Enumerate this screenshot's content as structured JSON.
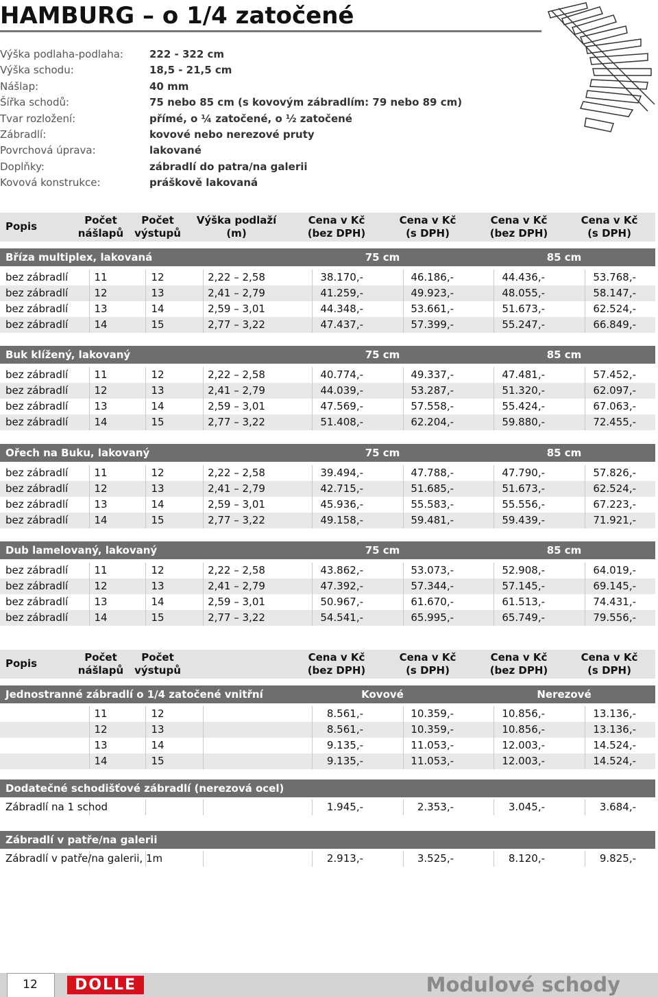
{
  "title": "HAMBURG – o 1/4 zatočené",
  "specs": [
    [
      "Výška podlaha-podlaha:",
      "222 - 322 cm"
    ],
    [
      "Výška schodu:",
      "18,5 - 21,5 cm"
    ],
    [
      "Nášlap:",
      "40 mm"
    ],
    [
      "Šířka schodů:",
      "75 nebo 85 cm (s kovovým zábradlím: 79 nebo 89 cm)"
    ],
    [
      "Tvar rozložení:",
      "přímé, o ¼ zatočené, o ½ zatočené"
    ],
    [
      "Zábradlí:",
      "kovové nebo nerezové pruty"
    ],
    [
      "Povrchová úprava:",
      "lakované"
    ],
    [
      "Doplňky:",
      "zábradlí do patra/na galerii"
    ],
    [
      "Kovová konstrukce:",
      "práškově lakovaná"
    ]
  ],
  "table1": {
    "header": [
      [
        "Popis"
      ],
      [
        "Počet",
        "nášlapů"
      ],
      [
        "Počet",
        "výstupů"
      ],
      [
        "Výška podlaží",
        "(m)"
      ],
      [
        "Cena v Kč",
        "(bez DPH)"
      ],
      [
        "Cena v Kč",
        "(s DPH)"
      ],
      [
        "Cena v Kč",
        "(bez DPH)"
      ],
      [
        "Cena v Kč",
        "(s DPH)"
      ]
    ],
    "sections": [
      {
        "name": "Bříza multiplex, lakovaná",
        "left": "75 cm",
        "right": "85 cm",
        "rows": [
          [
            "bez zábradlí",
            "11",
            "12",
            "2,22 – 2,58",
            "38.170,-",
            "46.186,-",
            "44.436,-",
            "53.768,-"
          ],
          [
            "bez zábradlí",
            "12",
            "13",
            "2,41 – 2,79",
            "41.259,-",
            "49.923,-",
            "48.055,-",
            "58.147,-"
          ],
          [
            "bez zábradlí",
            "13",
            "14",
            "2,59 – 3,01",
            "44.348,-",
            "53.661,-",
            "51.673,-",
            "62.524,-"
          ],
          [
            "bez zábradlí",
            "14",
            "15",
            "2,77 – 3,22",
            "47.437,-",
            "57.399,-",
            "55.247,-",
            "66.849,-"
          ]
        ]
      },
      {
        "name": "Buk klížený, lakovaný",
        "left": "75 cm",
        "right": "85 cm",
        "rows": [
          [
            "bez zábradlí",
            "11",
            "12",
            "2,22 – 2,58",
            "40.774,-",
            "49.337,-",
            "47.481,-",
            "57.452,-"
          ],
          [
            "bez zábradlí",
            "12",
            "13",
            "2,41 – 2,79",
            "44.039,-",
            "53.287,-",
            "51.320,-",
            "62.097,-"
          ],
          [
            "bez zábradlí",
            "13",
            "14",
            "2,59 – 3,01",
            "47.569,-",
            "57.558,-",
            "55.424,-",
            "67.063,-"
          ],
          [
            "bez zábradlí",
            "14",
            "15",
            "2,77 – 3,22",
            "51.408,-",
            "62.204,-",
            "59.880,-",
            "72.455,-"
          ]
        ]
      },
      {
        "name": "Ořech na Buku, lakovaný",
        "left": "75 cm",
        "right": "85 cm",
        "rows": [
          [
            "bez zábradlí",
            "11",
            "12",
            "2,22 – 2,58",
            "39.494,-",
            "47.788,-",
            "47.790,-",
            "57.826,-"
          ],
          [
            "bez zábradlí",
            "12",
            "13",
            "2,41 – 2,79",
            "42.715,-",
            "51.685,-",
            "51.673,-",
            "62.524,-"
          ],
          [
            "bez zábradlí",
            "13",
            "14",
            "2,59 – 3,01",
            "45.936,-",
            "55.583,-",
            "55.556,-",
            "67.223,-"
          ],
          [
            "bez zábradlí",
            "14",
            "15",
            "2,77 – 3,22",
            "49.158,-",
            "59.481,-",
            "59.439,-",
            "71.921,-"
          ]
        ]
      },
      {
        "name": "Dub lamelovaný, lakovaný",
        "left": "75 cm",
        "right": "85 cm",
        "rows": [
          [
            "bez zábradlí",
            "11",
            "12",
            "2,22 – 2,58",
            "43.862,-",
            "53.073,-",
            "52.908,-",
            "64.019,-"
          ],
          [
            "bez zábradlí",
            "12",
            "13",
            "2,41 – 2,79",
            "47.392,-",
            "57.344,-",
            "57.145,-",
            "69.145,-"
          ],
          [
            "bez zábradlí",
            "13",
            "14",
            "2,59 – 3,01",
            "50.967,-",
            "61.670,-",
            "61.513,-",
            "74.431,-"
          ],
          [
            "bez zábradlí",
            "14",
            "15",
            "2,77 – 3,22",
            "54.541,-",
            "65.995,-",
            "65.749,-",
            "79.556,-"
          ]
        ]
      }
    ]
  },
  "table2": {
    "header": [
      [
        "Popis"
      ],
      [
        "Počet",
        "nášlapů"
      ],
      [
        "Počet",
        "výstupů"
      ],
      [
        "Cena v Kč",
        "(bez DPH)"
      ],
      [
        "Cena v Kč",
        "(s DPH)"
      ],
      [
        "Cena v Kč",
        "(bez DPH)"
      ],
      [
        "Cena v Kč",
        "(s DPH)"
      ]
    ],
    "sections": [
      {
        "name": "Jednostranné zábradlí o 1/4 zatočené vnitřní",
        "left": "Kovové",
        "right": "Nerezové",
        "rows": [
          [
            "11",
            "12",
            "8.561,-",
            "10.359,-",
            "10.856,-",
            "13.136,-"
          ],
          [
            "12",
            "13",
            "8.561,-",
            "10.359,-",
            "10.856,-",
            "13.136,-"
          ],
          [
            "13",
            "14",
            "9.135,-",
            "11.053,-",
            "12.003,-",
            "14.524,-"
          ],
          [
            "14",
            "15",
            "9.135,-",
            "11.053,-",
            "12.003,-",
            "14.524,-"
          ]
        ]
      },
      {
        "name": "Dodatečné schodišťové zábradlí (nerezová ocel)",
        "rows": [
          [
            "Zábradlí na 1 schod",
            "1.945,-",
            "2.353,-",
            "3.045,-",
            "3.684,-"
          ]
        ]
      },
      {
        "name": "Zábradlí v patře/na galerii",
        "rows": [
          [
            "Zábradlí v patře/na galerii, 1m",
            "2.913,-",
            "3.525,-",
            "8.120,-",
            "9.825,-"
          ]
        ]
      }
    ]
  },
  "footer": {
    "page": "12",
    "logo": "DOLLE",
    "brand": "Modulové schody"
  }
}
